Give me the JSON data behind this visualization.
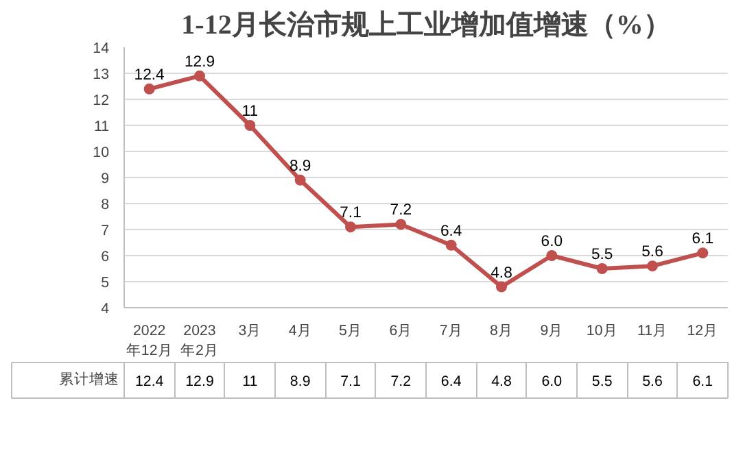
{
  "chart_data": {
    "type": "line",
    "title": "1-12月长治市规上工业增加值增速（%）",
    "categories": [
      "2022\n年12月",
      "2023\n年2月",
      "3月",
      "4月",
      "5月",
      "6月",
      "7月",
      "8月",
      "9月",
      "10月",
      "11月",
      "12月"
    ],
    "series": [
      {
        "name": "累计增速",
        "color": "#c0504d",
        "values": [
          12.4,
          12.9,
          11,
          8.9,
          7.1,
          7.2,
          6.4,
          4.8,
          6.0,
          5.5,
          5.6,
          6.1
        ],
        "value_labels": [
          "12.4",
          "12.9",
          "11",
          "8.9",
          "7.1",
          "7.2",
          "6.4",
          "4.8",
          "6.0",
          "5.5",
          "5.6",
          "6.1"
        ]
      }
    ],
    "ylim": [
      4,
      14
    ],
    "yticks": [
      4,
      5,
      6,
      7,
      8,
      9,
      10,
      11,
      12,
      13,
      14
    ],
    "grid": "y",
    "legend": "bottom",
    "marker": "circle",
    "line_style": "solid"
  }
}
